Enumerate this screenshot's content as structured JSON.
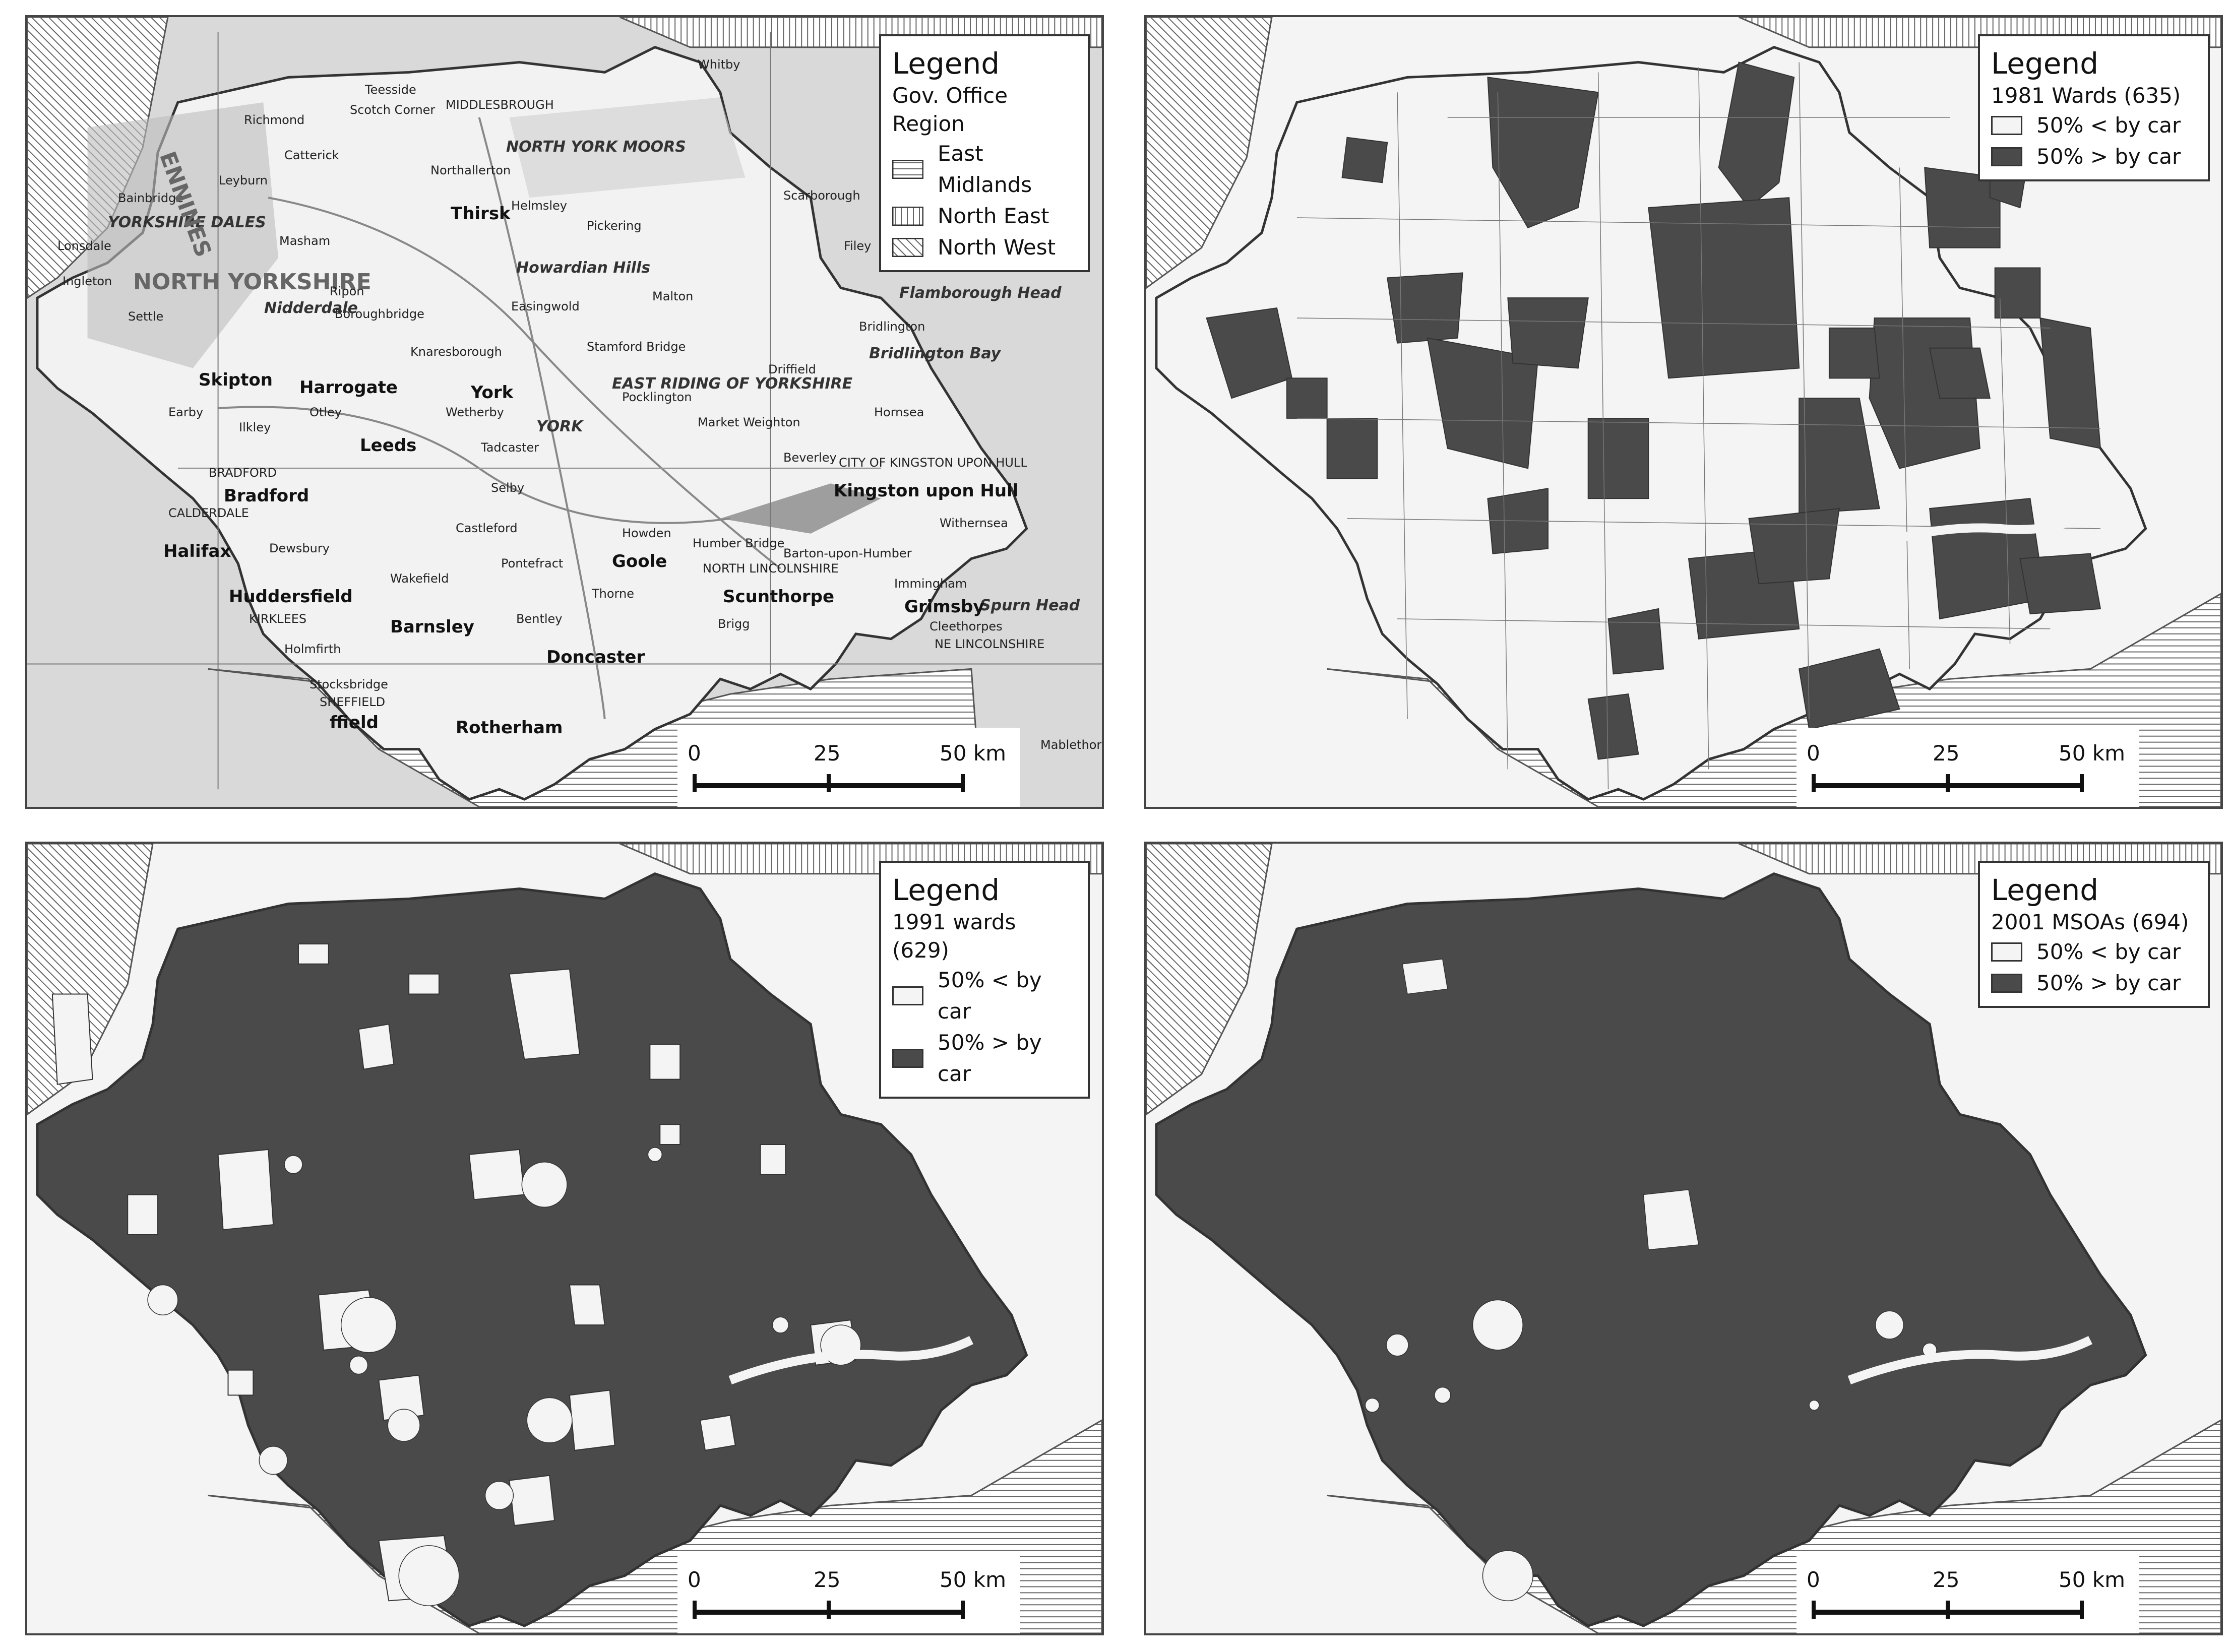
{
  "panels": [
    {
      "legend": {
        "title": "Legend",
        "subtitle": "Gov. Office Region",
        "items": [
          {
            "label": "East Midlands",
            "pattern": "horizontal"
          },
          {
            "label": "North East",
            "pattern": "vertical"
          },
          {
            "label": "North West",
            "pattern": "diagonal"
          }
        ]
      },
      "scale": {
        "labels": [
          "0",
          "25",
          "50 km"
        ]
      },
      "places": [
        "Whitby",
        "Teesside",
        "MIDDLESBROUGH",
        "Richmond",
        "Scotch Corner",
        "NORTH YORK MOORS",
        "Catterick",
        "Northallerton",
        "Leyburn",
        "Bainbridge",
        "YORKSHIRE DALES",
        "Thirsk",
        "Helmsley",
        "Scarborough",
        "Pickering",
        "Lonsdale",
        "Masham",
        "Filey",
        "NORTH YORKSHIRE",
        "Howardian Hills",
        "Flamborough Head",
        "Ingleton",
        "Ripon",
        "Easingwold",
        "Malton",
        "Settle",
        "Boroughbridge",
        "Nidderdale",
        "Bridlington",
        "Bridlington Bay",
        "Knaresborough",
        "Stamford Bridge",
        "Skipton",
        "Harrogate",
        "York",
        "Driffield",
        "EAST RIDING OF YORKSHIRE",
        "Pocklington",
        "Earby",
        "Otley",
        "Wetherby",
        "Hornsea",
        "Ilkley",
        "Leeds",
        "YORK",
        "Market Weighton",
        "Tadcaster",
        "Beverley",
        "CITY OF KINGSTON UPON HULL",
        "BRADFORD",
        "Bradford",
        "Kingston upon Hull",
        "Selby",
        "CALDERDALE",
        "Castleford",
        "Withernsea",
        "Halifax",
        "Dewsbury",
        "Howden",
        "Goole",
        "Humber Bridge",
        "Barton-upon-Humber",
        "Pontefract",
        "Wakefield",
        "Immingham",
        "Huddersfield",
        "KIRKLEES",
        "Scunthorpe",
        "Spurn Head",
        "Thorne",
        "Grimsby",
        "Barnsley",
        "Bentley",
        "Brigg",
        "Cleethorpes",
        "NE LINCOLNSHIRE",
        "NORTH LINCOLNSHIRE",
        "Holmfirth",
        "Doncaster",
        "Stocksbridge",
        "SHEFFIELD",
        "ffield",
        "Rotherham",
        "Mablethorpe",
        "ENNINES"
      ]
    },
    {
      "legend": {
        "title": "Legend",
        "subtitle": "1981 Wards (635)",
        "items": [
          {
            "label": "50% < by car",
            "fill": "#f4f4f4"
          },
          {
            "label": "50% > by car",
            "fill": "#4a4a4a"
          }
        ]
      },
      "scale": {
        "labels": [
          "0",
          "25",
          "50 km"
        ]
      }
    },
    {
      "legend": {
        "title": "Legend",
        "subtitle": "1991 wards (629)",
        "items": [
          {
            "label": "50% < by car",
            "fill": "#f4f4f4"
          },
          {
            "label": "50% > by car",
            "fill": "#4a4a4a"
          }
        ]
      },
      "scale": {
        "labels": [
          "0",
          "25",
          "50 km"
        ]
      }
    },
    {
      "legend": {
        "title": "Legend",
        "subtitle": "2001 MSOAs (694)",
        "items": [
          {
            "label": "50% < by car",
            "fill": "#f4f4f4"
          },
          {
            "label": "50% > by car",
            "fill": "#4a4a4a"
          }
        ]
      },
      "scale": {
        "labels": [
          "0",
          "25",
          "50 km"
        ]
      }
    }
  ]
}
